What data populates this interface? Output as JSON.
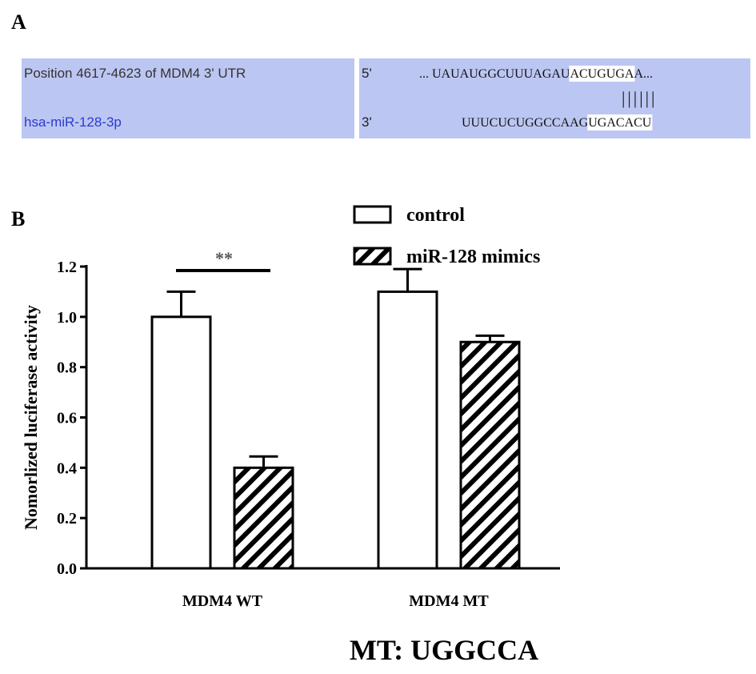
{
  "panel_a": {
    "label": "A",
    "rows": [
      {
        "name": "Position 4617-4623 of MDM4 3' UTR",
        "end": "5'",
        "sequence": [
          "... UAUAUGGCUUUAGAU",
          "ACUGUGA",
          "A..."
        ]
      },
      {
        "name": "hsa-miR-128-3p",
        "end": "3'",
        "sequence": [
          "UUUCUCUGGCCAAG",
          "UGACACU"
        ]
      }
    ],
    "pairing": "||||||"
  },
  "chart_data": {
    "type": "bar",
    "panel_label": "B",
    "ylabel": "Nomorlized luciferase activity",
    "categories": [
      "MDM4 WT",
      "MDM4 MT"
    ],
    "series": [
      {
        "name": "control",
        "color": "#000000",
        "hatch": false,
        "values": [
          1.0,
          1.1
        ],
        "errors": [
          0.1,
          0.09
        ]
      },
      {
        "name": "miR-128 mimics",
        "color": "#000000",
        "hatch": true,
        "values": [
          0.4,
          0.9
        ],
        "errors": [
          0.045,
          0.025
        ]
      }
    ],
    "ylim": [
      0,
      1.2
    ],
    "yticks": [
      {
        "value": 0,
        "label": "0.0"
      },
      0.2,
      0.4,
      0.6,
      0.8,
      {
        "value": 1,
        "label": "1.0"
      },
      1.2
    ],
    "significance": {
      "label": "**",
      "category": 0
    },
    "annotation": "MT: UGGCCA",
    "legend": "top-right"
  }
}
